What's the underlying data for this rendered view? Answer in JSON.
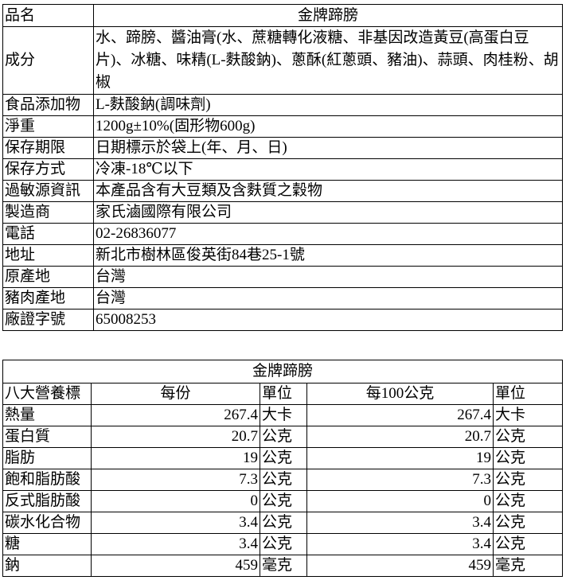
{
  "product_info": {
    "rows": [
      {
        "label": "品名",
        "value": "金牌蹄膀"
      },
      {
        "label": "成分",
        "value": "水、蹄膀、醬油膏(水、蔗糖轉化液糖、非基因改造黃豆(高蛋白豆片)、冰糖、味精(L-麩酸鈉)、蔥酥(紅蔥頭、豬油)、蒜頭、肉桂粉、胡椒"
      },
      {
        "label": "食品添加物",
        "value": "L-麩酸鈉(調味劑)"
      },
      {
        "label": "淨重",
        "value": "1200g±10%(固形物600g)"
      },
      {
        "label": "保存期限",
        "value": "日期標示於袋上(年、月、日)"
      },
      {
        "label": "保存方式",
        "value": "冷凍-18℃以下"
      },
      {
        "label": "過敏源資訊",
        "value": "本產品含有大豆類及含麩質之穀物"
      },
      {
        "label": "製造商",
        "value": "家氏滷國際有限公司"
      },
      {
        "label": "電話",
        "value": "02-26836077"
      },
      {
        "label": "地址",
        "value": "新北市樹林區俊英街84巷25-1號"
      },
      {
        "label": "原產地",
        "value": "台灣"
      },
      {
        "label": "豬肉產地",
        "value": "台灣"
      },
      {
        "label": "廠證字號",
        "value": "65008253"
      }
    ]
  },
  "nutrition": {
    "title": "金牌蹄膀",
    "headers": [
      "八大營養標",
      "每份",
      "單位",
      "每100公克",
      "單位"
    ],
    "rows": [
      [
        "熱量",
        "267.4",
        "大卡",
        "267.4",
        "大卡"
      ],
      [
        "蛋白質",
        "20.7",
        "公克",
        "20.7",
        "公克"
      ],
      [
        "脂肪",
        "19",
        "公克",
        "19",
        "公克"
      ],
      [
        "飽和脂肪酸",
        "7.3",
        "公克",
        "7.3",
        "公克"
      ],
      [
        "反式脂肪酸",
        "0",
        "公克",
        "0",
        "公克"
      ],
      [
        "碳水化合物",
        "3.4",
        "公克",
        "3.4",
        "公克"
      ],
      [
        "糖",
        "3.4",
        "公克",
        "3.4",
        "公克"
      ],
      [
        "鈉",
        "459",
        "毫克",
        "459",
        "毫克"
      ]
    ]
  }
}
